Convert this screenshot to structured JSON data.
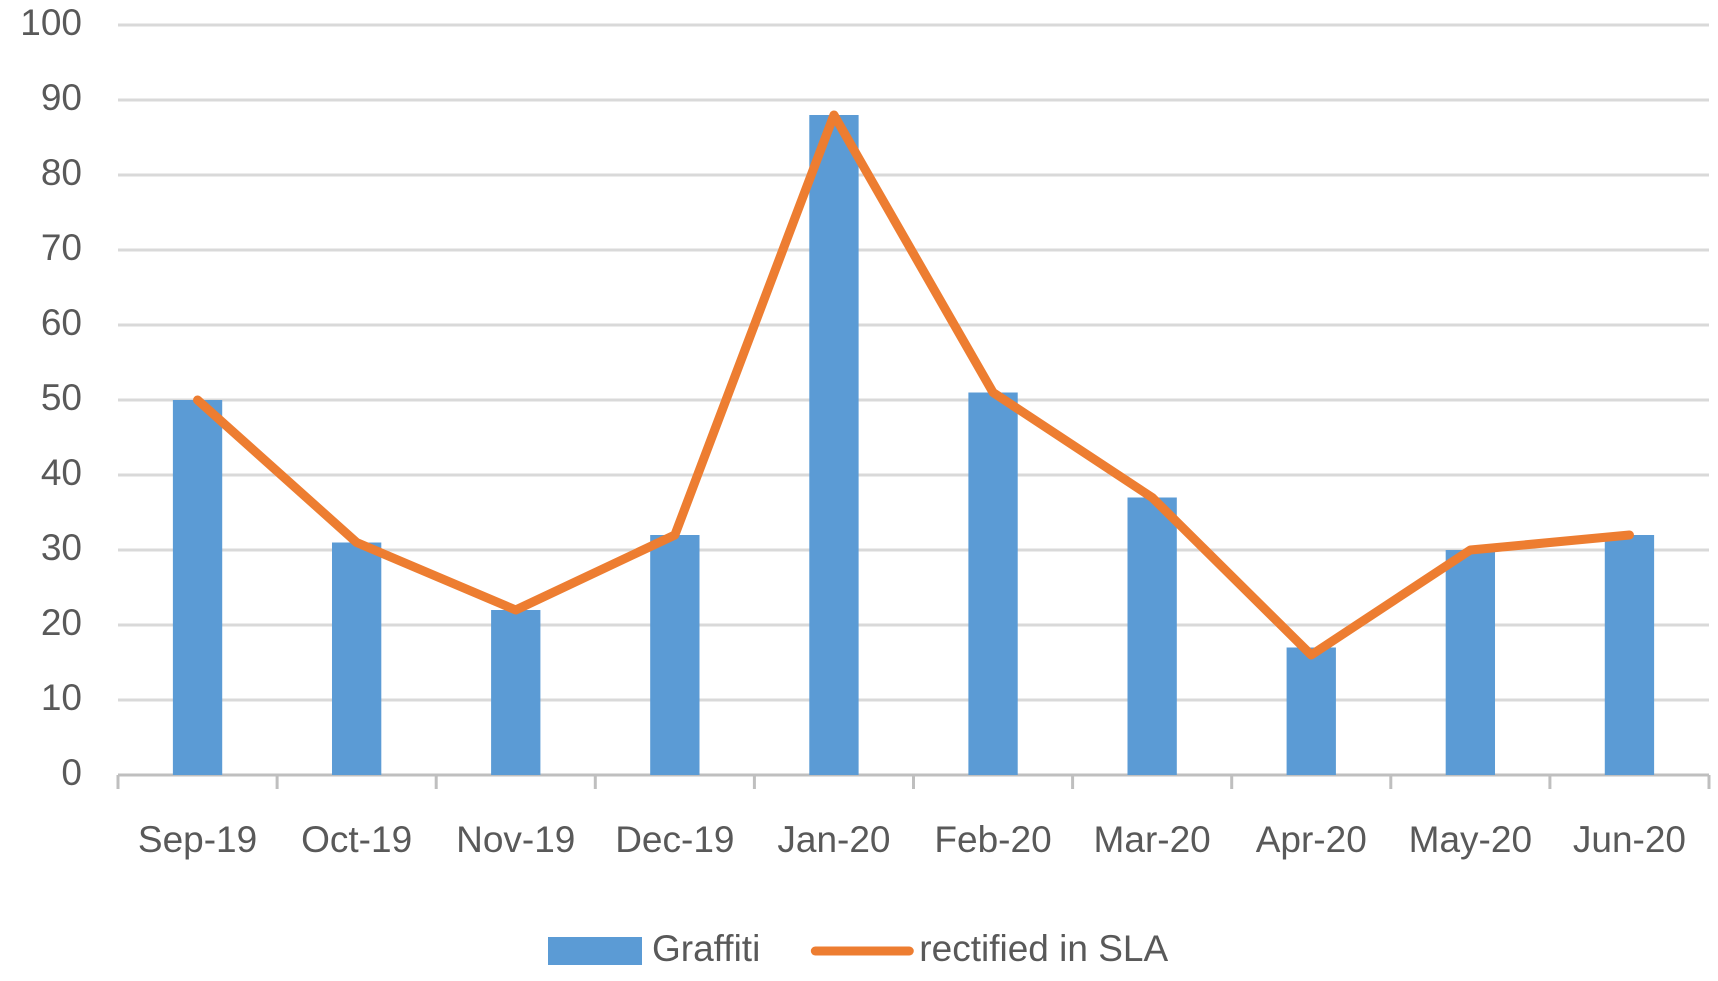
{
  "chart_data": {
    "type": "bar",
    "categories": [
      "Sep-19",
      "Oct-19",
      "Nov-19",
      "Dec-19",
      "Jan-20",
      "Feb-20",
      "Mar-20",
      "Apr-20",
      "May-20",
      "Jun-20"
    ],
    "series": [
      {
        "name": "Graffiti",
        "type": "bar",
        "color": "#5b9bd5",
        "values": [
          50,
          31,
          22,
          32,
          88,
          51,
          37,
          17,
          30,
          32
        ]
      },
      {
        "name": "rectified in SLA",
        "type": "line",
        "color": "#ed7d31",
        "values": [
          50,
          31,
          22,
          32,
          88,
          51,
          37,
          16,
          30,
          32
        ]
      }
    ],
    "ylim": [
      0,
      100
    ],
    "yticks": [
      0,
      10,
      20,
      30,
      40,
      50,
      60,
      70,
      80,
      90,
      100
    ],
    "grid": true,
    "legend": "bottom"
  }
}
